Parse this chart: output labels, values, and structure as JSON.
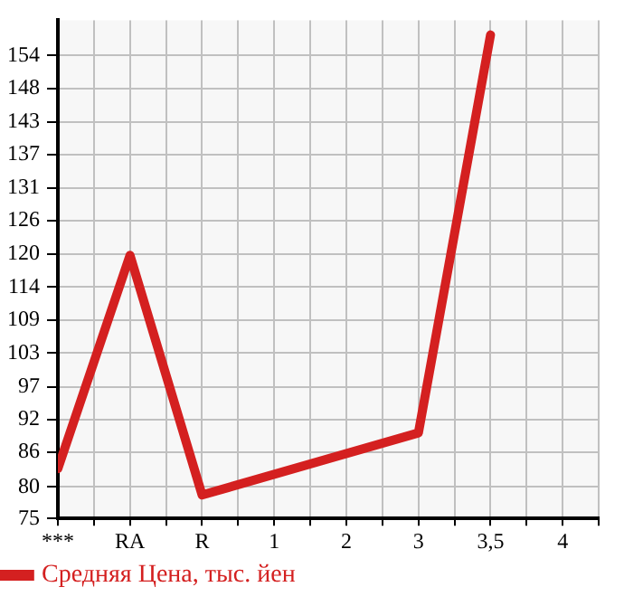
{
  "chart_data": {
    "type": "line",
    "categories": [
      "***",
      "RA",
      "R",
      "1",
      "2",
      "3",
      "3,5",
      "4"
    ],
    "series": [
      {
        "name": "Средняя Цена, тыс. йен",
        "color": "#d42020",
        "values": [
          83.5,
          119.9,
          79,
          null,
          null,
          89.6,
          157.5,
          null
        ]
      }
    ],
    "ylim": [
      75,
      160
    ],
    "yticks": [
      75,
      {
        "value": 80.4,
        "label": "80"
      },
      {
        "value": 86.3,
        "label": "86"
      },
      {
        "value": 91.9,
        "label": "92"
      },
      {
        "value": 97.4,
        "label": "97"
      },
      {
        "value": 103.2,
        "label": "103"
      },
      {
        "value": 108.9,
        "label": "109"
      },
      {
        "value": 114.5,
        "label": "114"
      },
      {
        "value": 120.1,
        "label": "120"
      },
      {
        "value": 125.8,
        "label": "126"
      },
      {
        "value": 131.4,
        "label": "131"
      },
      {
        "value": 137.1,
        "label": "137"
      },
      {
        "value": 142.7,
        "label": "143"
      },
      {
        "value": 148.4,
        "label": "148"
      },
      154
    ],
    "grid": true,
    "legend": "bottom left"
  }
}
